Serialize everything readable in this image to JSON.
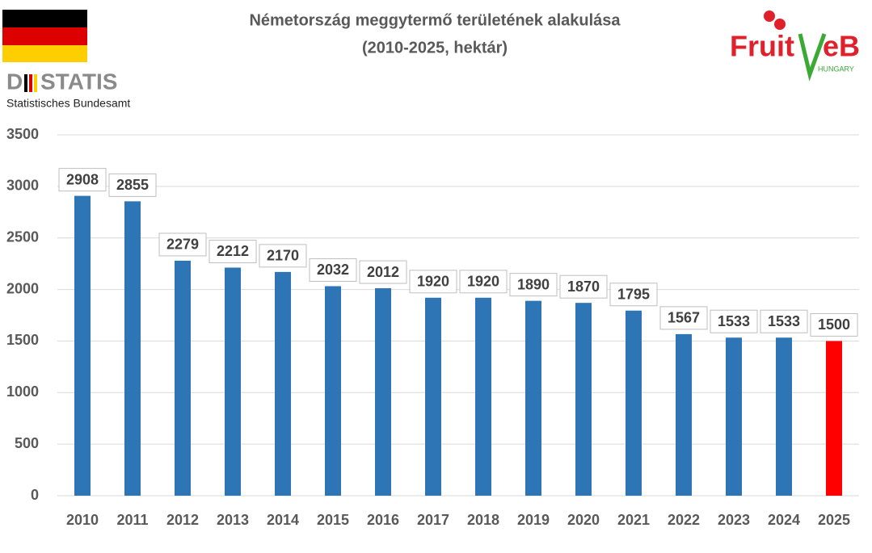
{
  "chart_data": {
    "type": "bar",
    "title": "Németország meggytermő területének alakulása",
    "subtitle": "(2010-2025, hektár)",
    "categories": [
      "2010",
      "2011",
      "2012",
      "2013",
      "2014",
      "2015",
      "2016",
      "2017",
      "2018",
      "2019",
      "2020",
      "2021",
      "2022",
      "2023",
      "2024",
      "2025"
    ],
    "values": [
      2908,
      2855,
      2279,
      2212,
      2170,
      2032,
      2012,
      1920,
      1920,
      1890,
      1870,
      1795,
      1567,
      1533,
      1533,
      1500
    ],
    "colors": [
      "#2e75b6",
      "#2e75b6",
      "#2e75b6",
      "#2e75b6",
      "#2e75b6",
      "#2e75b6",
      "#2e75b6",
      "#2e75b6",
      "#2e75b6",
      "#2e75b6",
      "#2e75b6",
      "#2e75b6",
      "#2e75b6",
      "#2e75b6",
      "#2e75b6",
      "#ff0000"
    ],
    "ylim": [
      0,
      3500
    ],
    "yticks": [
      0,
      500,
      1000,
      1500,
      2000,
      2500,
      3000,
      3500
    ],
    "grid": true
  },
  "source_logo": {
    "wordmark_start": "D",
    "wordmark_end": "STATIS",
    "name": "Statistisches Bundesamt"
  },
  "brand_logo": {
    "text_start": "Fruit",
    "text_end": "eB",
    "country": "HUNGARY"
  }
}
